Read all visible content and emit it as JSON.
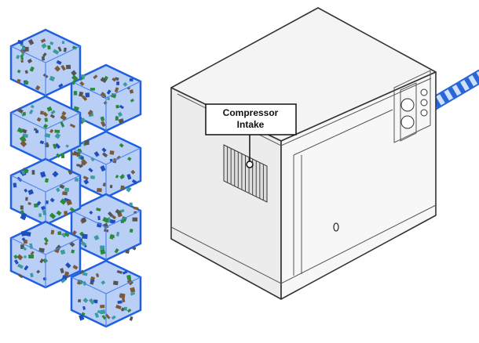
{
  "callout": {
    "label_lines": [
      "Compressor",
      "Intake"
    ]
  }
}
